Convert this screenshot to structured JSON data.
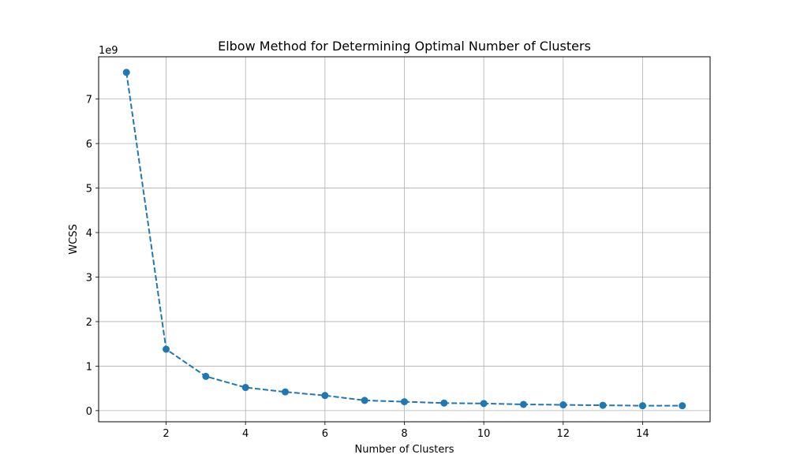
{
  "chart_data": {
    "type": "line",
    "title": "Elbow Method for Determining Optimal Number of Clusters",
    "xlabel": "Number of Clusters",
    "ylabel": "WCSS",
    "y_offset_label": "1e9",
    "xlim": [
      0.3,
      15.7
    ],
    "ylim": [
      -0.25,
      7.95
    ],
    "x_ticks": [
      2,
      4,
      6,
      8,
      10,
      12,
      14
    ],
    "y_ticks": [
      0,
      1,
      2,
      3,
      4,
      5,
      6,
      7
    ],
    "grid": true,
    "line_style": "dashed",
    "marker": "circle",
    "color": "#1f77b4",
    "x": [
      1,
      2,
      3,
      4,
      5,
      6,
      7,
      8,
      9,
      10,
      11,
      12,
      13,
      14,
      15
    ],
    "values": [
      7.6,
      1.38,
      0.77,
      0.52,
      0.42,
      0.34,
      0.23,
      0.2,
      0.17,
      0.16,
      0.14,
      0.13,
      0.12,
      0.11,
      0.11
    ]
  }
}
